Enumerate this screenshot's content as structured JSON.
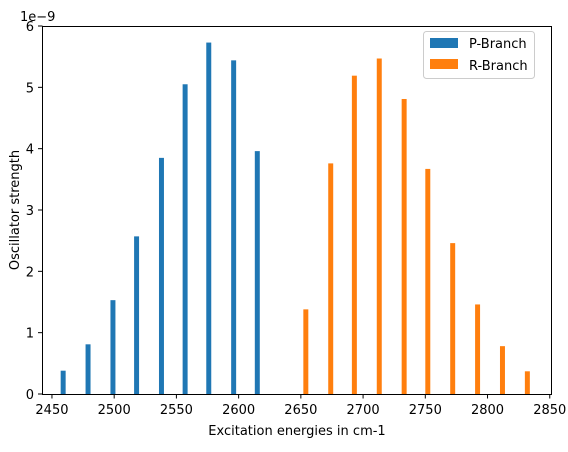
{
  "chart_data": {
    "type": "bar",
    "title": "",
    "xlabel": "Excitation energies in cm-1",
    "ylabel": "Oscillator strength",
    "y_offset_label": "1e−9",
    "xlim": [
      2442,
      2851
    ],
    "ylim": [
      0,
      6
    ],
    "x_ticks": [
      2450,
      2500,
      2550,
      2600,
      2650,
      2700,
      2750,
      2800,
      2850
    ],
    "y_ticks": [
      0,
      1,
      2,
      3,
      4,
      5,
      6
    ],
    "grid": false,
    "legend": "upper right",
    "bar_width": 4,
    "series": [
      {
        "name": "P-Branch",
        "color": "#1f77b4",
        "points": [
          {
            "x": 2459,
            "y": 0.38
          },
          {
            "x": 2479,
            "y": 0.81
          },
          {
            "x": 2499,
            "y": 1.53
          },
          {
            "x": 2518,
            "y": 2.57
          },
          {
            "x": 2538,
            "y": 3.85
          },
          {
            "x": 2557,
            "y": 5.05
          },
          {
            "x": 2576,
            "y": 5.73
          },
          {
            "x": 2596,
            "y": 5.44
          },
          {
            "x": 2615,
            "y": 3.96
          }
        ]
      },
      {
        "name": "R-Branch",
        "color": "#ff7f0e",
        "points": [
          {
            "x": 2654,
            "y": 1.38
          },
          {
            "x": 2674,
            "y": 3.76
          },
          {
            "x": 2693,
            "y": 5.19
          },
          {
            "x": 2713,
            "y": 5.47
          },
          {
            "x": 2733,
            "y": 4.81
          },
          {
            "x": 2752,
            "y": 3.67
          },
          {
            "x": 2772,
            "y": 2.46
          },
          {
            "x": 2792,
            "y": 1.46
          },
          {
            "x": 2812,
            "y": 0.78
          },
          {
            "x": 2832,
            "y": 0.37
          }
        ]
      }
    ]
  }
}
